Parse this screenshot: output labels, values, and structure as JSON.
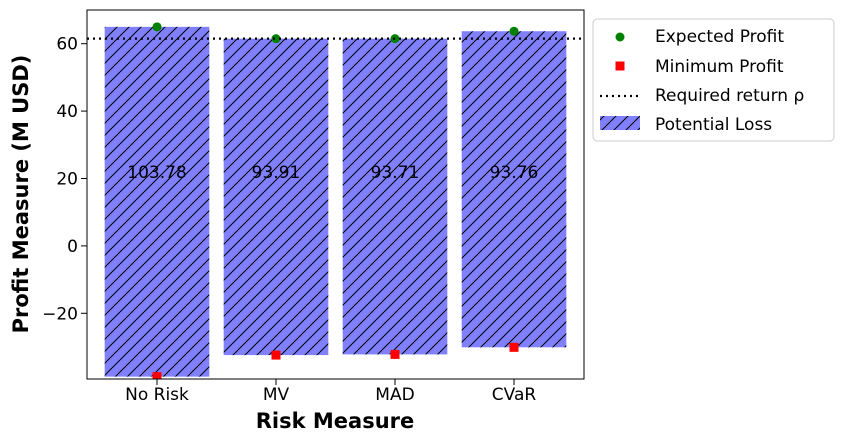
{
  "chart_data": {
    "type": "bar",
    "xlabel": "Risk Measure",
    "ylabel": "Profit Measure (M USD)",
    "categories": [
      "No Risk",
      "MV",
      "MAD",
      "CVaR"
    ],
    "ylim": [
      -39.5,
      70.0
    ],
    "yticks": [
      -20,
      0,
      20,
      40,
      60
    ],
    "ytick_labels": [
      "−20",
      "0",
      "20",
      "40",
      "60"
    ],
    "required_return": 61.5,
    "series": [
      {
        "name": "Expected Profit",
        "values": [
          65.0,
          61.5,
          61.5,
          63.7
        ],
        "marker": "circle",
        "color": "#008000"
      },
      {
        "name": "Minimum Profit",
        "values": [
          -38.8,
          -32.4,
          -32.2,
          -30.1
        ],
        "marker": "square",
        "color": "#ff0000"
      },
      {
        "name": "Potential Loss",
        "bottom": [
          -38.8,
          -32.4,
          -32.2,
          -30.1
        ],
        "top": [
          65.0,
          61.5,
          61.5,
          63.7
        ],
        "labels": [
          "103.78",
          "93.91",
          "93.71",
          "93.76"
        ],
        "label_y": 22,
        "color": "#8080ff",
        "hatch": "//"
      }
    ],
    "legend": {
      "position": "outside-right",
      "entries": [
        "Expected Profit",
        "Minimum Profit",
        "Required return ρ",
        "Potential Loss"
      ]
    },
    "grid": false
  }
}
